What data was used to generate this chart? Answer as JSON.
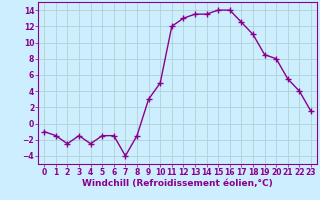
{
  "x": [
    0,
    1,
    2,
    3,
    4,
    5,
    6,
    7,
    8,
    9,
    10,
    11,
    12,
    13,
    14,
    15,
    16,
    17,
    18,
    19,
    20,
    21,
    22,
    23
  ],
  "y": [
    -1,
    -1.5,
    -2.5,
    -1.5,
    -2.5,
    -1.5,
    -1.5,
    -4,
    -1.5,
    3,
    5,
    12,
    13,
    13.5,
    13.5,
    14,
    14,
    12.5,
    11,
    8.5,
    8,
    5.5,
    4,
    1.5
  ],
  "line_color": "#8b008b",
  "marker": "+",
  "marker_size": 4,
  "marker_lw": 1.0,
  "bg_color": "#cceeff",
  "grid_color": "#aacccc",
  "xlabel": "Windchill (Refroidissement éolien,°C)",
  "xlabel_color": "#8b008b",
  "xlim": [
    -0.5,
    23.5
  ],
  "ylim": [
    -5,
    15
  ],
  "yticks": [
    -4,
    -2,
    0,
    2,
    4,
    6,
    8,
    10,
    12,
    14
  ],
  "xticks": [
    0,
    1,
    2,
    3,
    4,
    5,
    6,
    7,
    8,
    9,
    10,
    11,
    12,
    13,
    14,
    15,
    16,
    17,
    18,
    19,
    20,
    21,
    22,
    23
  ],
  "tick_label_size": 5.5,
  "xlabel_size": 6.5,
  "spine_color": "#8b008b",
  "line_width": 1.0
}
